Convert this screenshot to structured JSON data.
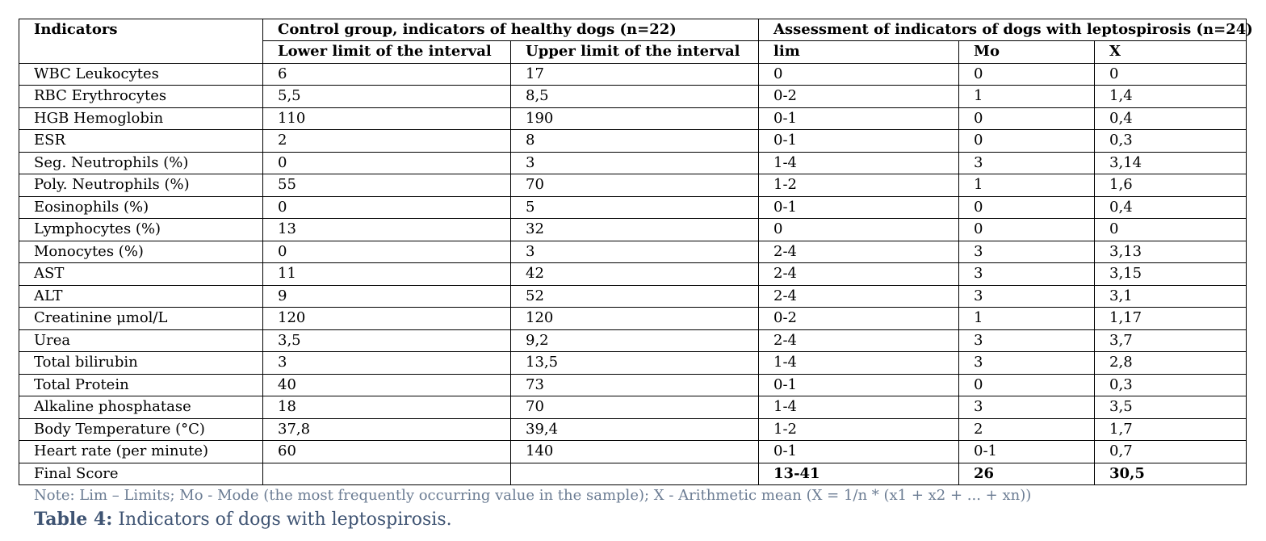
{
  "table": {
    "headers": {
      "indicators": "Indicators",
      "control_group": "Control group, indicators of healthy dogs (n=22)",
      "assessment": "Assessment of indicators of dogs with leptospirosis (n=24)",
      "lower": "Lower limit of the interval",
      "upper": "Upper limit of the interval",
      "lim": "lim",
      "mo": "Mo",
      "x": "X"
    },
    "rows": [
      {
        "name": "WBC Leukocytes",
        "lower": "6",
        "upper": "17",
        "lim": "0",
        "mo": "0",
        "x": "0"
      },
      {
        "name": "RBC Erythrocytes",
        "lower": "5,5",
        "upper": "8,5",
        "lim": "0-2",
        "mo": "1",
        "x": "1,4"
      },
      {
        "name": "HGB Hemoglobin",
        "lower": "110",
        "upper": "190",
        "lim": "0-1",
        "mo": "0",
        "x": "0,4"
      },
      {
        "name": "ESR",
        "lower": "2",
        "upper": "8",
        "lim": "0-1",
        "mo": "0",
        "x": "0,3"
      },
      {
        "name": "Seg. Neutrophils (%)",
        "lower": "0",
        "upper": "3",
        "lim": "1-4",
        "mo": "3",
        "x": "3,14"
      },
      {
        "name": "Poly. Neutrophils (%)",
        "lower": "55",
        "upper": "70",
        "lim": "1-2",
        "mo": "1",
        "x": "1,6"
      },
      {
        "name": "Eosinophils (%)",
        "lower": "0",
        "upper": "5",
        "lim": "0-1",
        "mo": "0",
        "x": "0,4"
      },
      {
        "name": "Lymphocytes (%)",
        "lower": "13",
        "upper": "32",
        "lim": "0",
        "mo": "0",
        "x": "0"
      },
      {
        "name": "Monocytes (%)",
        "lower": "0",
        "upper": "3",
        "lim": "2-4",
        "mo": "3",
        "x": "3,13"
      },
      {
        "name": "AST",
        "lower": "11",
        "upper": "42",
        "lim": "2-4",
        "mo": "3",
        "x": "3,15"
      },
      {
        "name": "ALT",
        "lower": "9",
        "upper": "52",
        "lim": "2-4",
        "mo": "3",
        "x": "3,1"
      },
      {
        "name": "Creatinine μmol/L",
        "lower": "120",
        "upper": "120",
        "lim": "0-2",
        "mo": "1",
        "x": "1,17"
      },
      {
        "name": "Urea",
        "lower": "3,5",
        "upper": "9,2",
        "lim": "2-4",
        "mo": "3",
        "x": "3,7"
      },
      {
        "name": "Total bilirubin",
        "lower": "3",
        "upper": "13,5",
        "lim": "1-4",
        "mo": "3",
        "x": "2,8"
      },
      {
        "name": "Total Protein",
        "lower": "40",
        "upper": "73",
        "lim": "0-1",
        "mo": "0",
        "x": "0,3"
      },
      {
        "name": "Alkaline phosphatase",
        "lower": "18",
        "upper": "70",
        "lim": "1-4",
        "mo": "3",
        "x": "3,5"
      },
      {
        "name": "Body Temperature (°C)",
        "lower": "37,8",
        "upper": "39,4",
        "lim": "1-2",
        "mo": "2",
        "x": "1,7"
      },
      {
        "name": "Heart rate (per minute)",
        "lower": "60",
        "upper": "140",
        "lim": "0-1",
        "mo": "0-1",
        "x": "0,7"
      }
    ],
    "final": {
      "name": "Final Score",
      "lower": "",
      "upper": "",
      "lim": "13-41",
      "mo": "26",
      "x": "30,5"
    }
  },
  "note": "Note: Lim – Limits; Mo - Mode (the most frequently occurring value in the sample); X - Arithmetic mean (X = 1/n * (x1 + x2 + ... + xn))",
  "caption": {
    "label": "Table 4:",
    "text": " Indicators of dogs with leptospirosis."
  }
}
